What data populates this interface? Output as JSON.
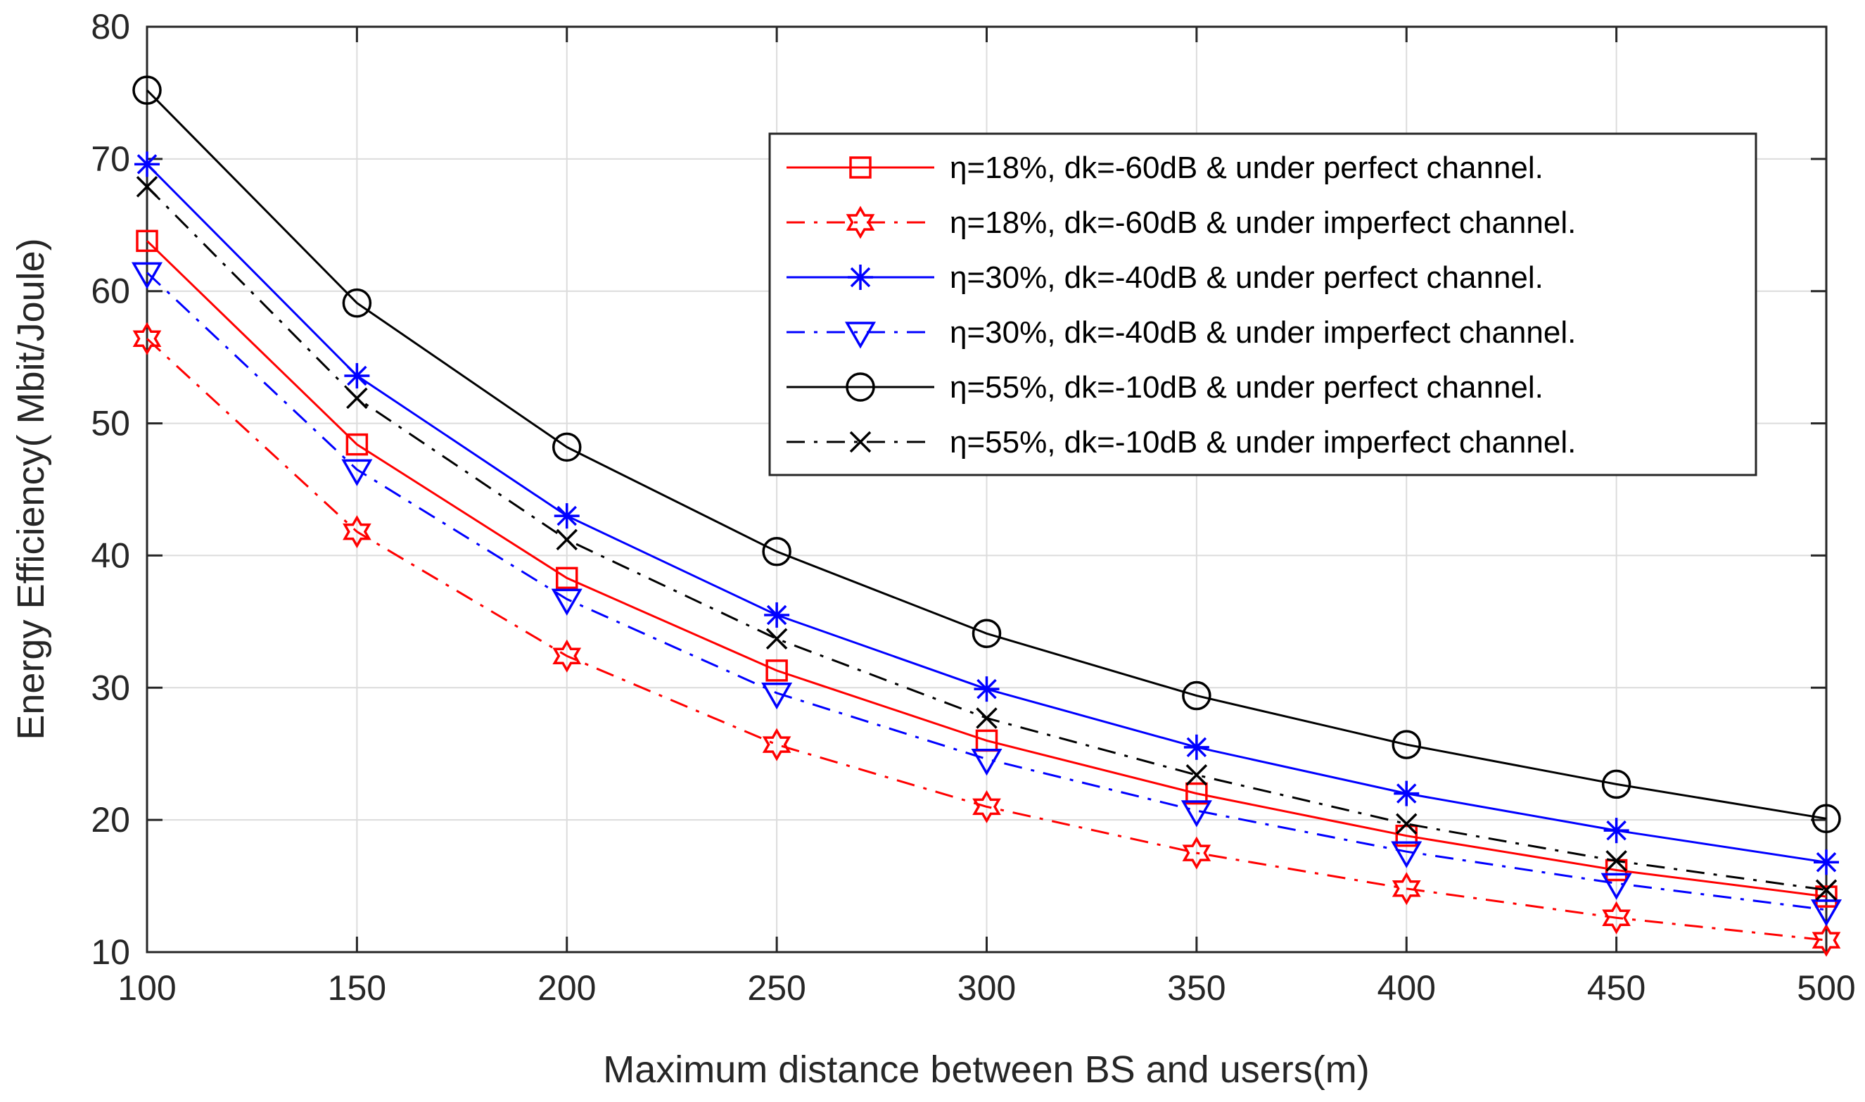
{
  "chart_data": {
    "type": "line",
    "title": "",
    "xlabel": "Maximum distance between BS and users(m)",
    "ylabel": "Energy Efficiency( Mbit/Joule)",
    "x": [
      100,
      150,
      200,
      250,
      300,
      350,
      400,
      450,
      500
    ],
    "xlim": [
      100,
      500
    ],
    "ylim": [
      10,
      80
    ],
    "xticks": [
      100,
      150,
      200,
      250,
      300,
      350,
      400,
      450,
      500
    ],
    "yticks": [
      10,
      20,
      30,
      40,
      50,
      60,
      70,
      80
    ],
    "grid": true,
    "legend_position": "top-right",
    "series": [
      {
        "name": "η=18%, dk=-60dB & under perfect channel.",
        "color": "#ff0000",
        "line": "solid",
        "marker": "square",
        "values": [
          63.8,
          48.4,
          38.3,
          31.3,
          26.0,
          22.0,
          18.8,
          16.2,
          14.2
        ]
      },
      {
        "name": "η=18%, dk=-60dB & under imperfect channel.",
        "color": "#ff0000",
        "line": "dashdot",
        "marker": "hexagram",
        "values": [
          56.4,
          41.8,
          32.4,
          25.7,
          21.0,
          17.5,
          14.8,
          12.6,
          10.9
        ]
      },
      {
        "name": "η=30%, dk=-40dB & under perfect channel.",
        "color": "#0000ff",
        "line": "solid",
        "marker": "asterisk",
        "values": [
          69.6,
          53.6,
          43.0,
          35.5,
          29.9,
          25.5,
          22.0,
          19.2,
          16.8
        ]
      },
      {
        "name": "η=30%, dk=-40dB & under imperfect channel.",
        "color": "#0000ff",
        "line": "dashdot",
        "marker": "triangle-down",
        "values": [
          61.4,
          46.5,
          36.7,
          29.6,
          24.6,
          20.7,
          17.6,
          15.2,
          13.2
        ]
      },
      {
        "name": "η=55%, dk=-10dB & under perfect channel.",
        "color": "#000000",
        "line": "solid",
        "marker": "circle",
        "values": [
          75.2,
          59.1,
          48.2,
          40.3,
          34.1,
          29.4,
          25.7,
          22.7,
          20.1
        ]
      },
      {
        "name": "η=55%, dk=-10dB & under imperfect channel.",
        "color": "#000000",
        "line": "dashdot",
        "marker": "x",
        "values": [
          67.9,
          51.9,
          41.2,
          33.7,
          27.7,
          23.4,
          19.7,
          16.9,
          14.7
        ]
      }
    ]
  }
}
